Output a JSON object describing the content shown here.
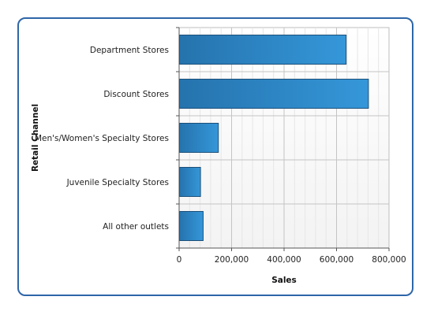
{
  "chart_data": {
    "type": "bar",
    "orientation": "horizontal",
    "categories": [
      "Department Stores",
      "Discount Stores",
      "Men's/Women's Specialty Stores",
      "Juvenile Specialty Stores",
      "All other outlets"
    ],
    "values": [
      635000,
      720000,
      148000,
      80000,
      90000
    ],
    "xlabel": "Sales",
    "ylabel": "Retail Channel",
    "xlim": [
      0,
      800000
    ],
    "xticks": [
      0,
      200000,
      400000,
      600000,
      800000
    ],
    "xtick_labels": [
      "0",
      "200,000",
      "400,000",
      "600,000",
      "800,000"
    ],
    "grid": true,
    "bar_color": "#2b86c7",
    "border_color": "#2e66a8"
  }
}
